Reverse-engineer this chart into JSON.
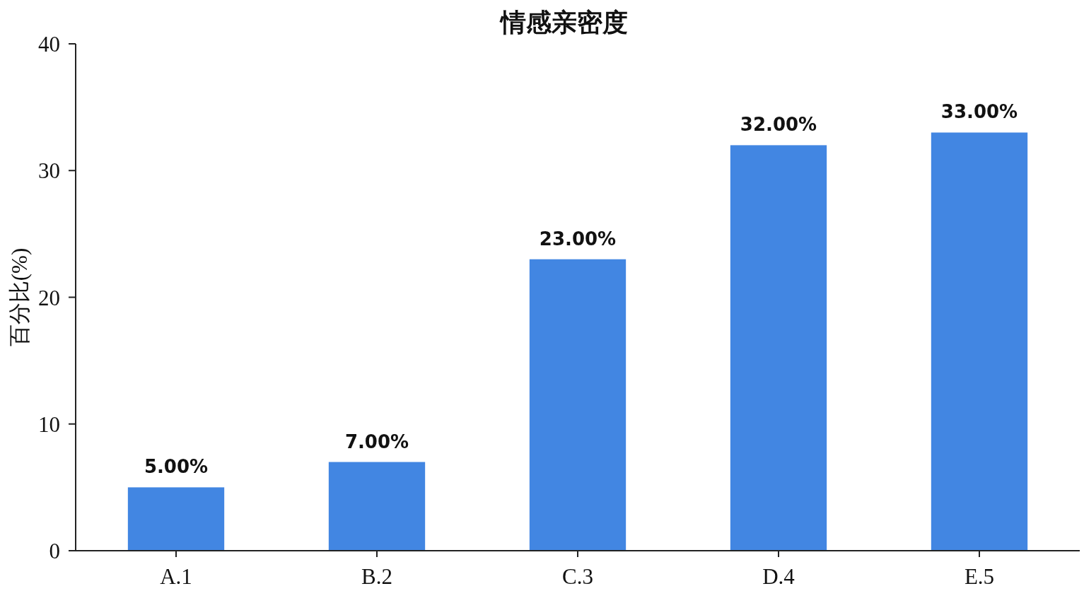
{
  "chart_data": {
    "type": "bar",
    "title": "情感亲密度",
    "ylabel": "百分比(%)",
    "categories": [
      "A.1",
      "B.2",
      "C.3",
      "D.4",
      "E.5"
    ],
    "values": [
      5,
      7,
      23,
      32,
      33
    ],
    "value_labels": [
      "5.00%",
      "7.00%",
      "23.00%",
      "32.00%",
      "33.00%"
    ],
    "color": "#4286e2",
    "ylim": [
      0,
      40
    ],
    "yticks": [
      0,
      10,
      20,
      30,
      40
    ],
    "grid": false
  }
}
